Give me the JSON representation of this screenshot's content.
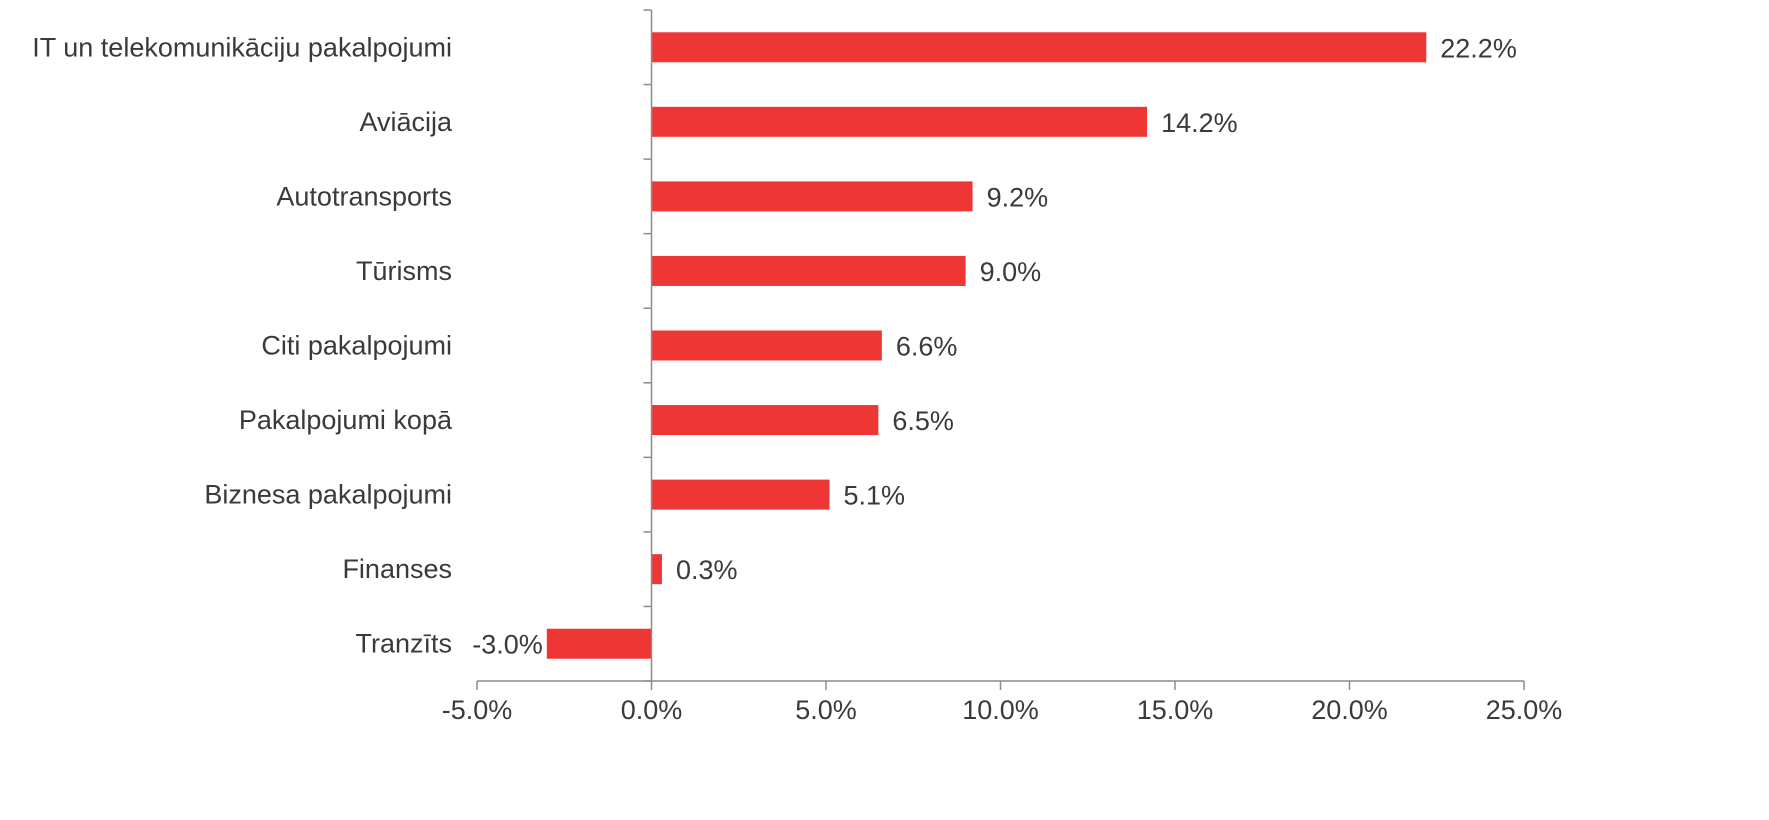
{
  "chart_data": {
    "type": "bar",
    "orientation": "horizontal",
    "categories": [
      "IT un telekomunikāciju pakalpojumi",
      "Aviācija",
      "Autotransports",
      "Tūrisms",
      "Citi pakalpojumi",
      "Pakalpojumi kopā",
      "Biznesa pakalpojumi",
      "Finanses",
      "Tranzīts"
    ],
    "values": [
      22.2,
      14.2,
      9.2,
      9.0,
      6.6,
      6.5,
      5.1,
      0.3,
      -3.0
    ],
    "data_labels": [
      "22.2%",
      "14.2%",
      "9.2%",
      "9.0%",
      "6.6%",
      "6.5%",
      "5.1%",
      "0.3%",
      "-3.0%"
    ],
    "xlim": [
      -5,
      25
    ],
    "x_ticks": [
      -5,
      0,
      5,
      10,
      15,
      20,
      25
    ],
    "x_tick_labels": [
      "-5.0%",
      "0.0%",
      "5.0%",
      "10.0%",
      "15.0%",
      "20.0%",
      "25.0%"
    ],
    "bar_color": "#ee3634",
    "grid": false,
    "legend": "none",
    "title": "",
    "xlabel": "",
    "ylabel": ""
  }
}
